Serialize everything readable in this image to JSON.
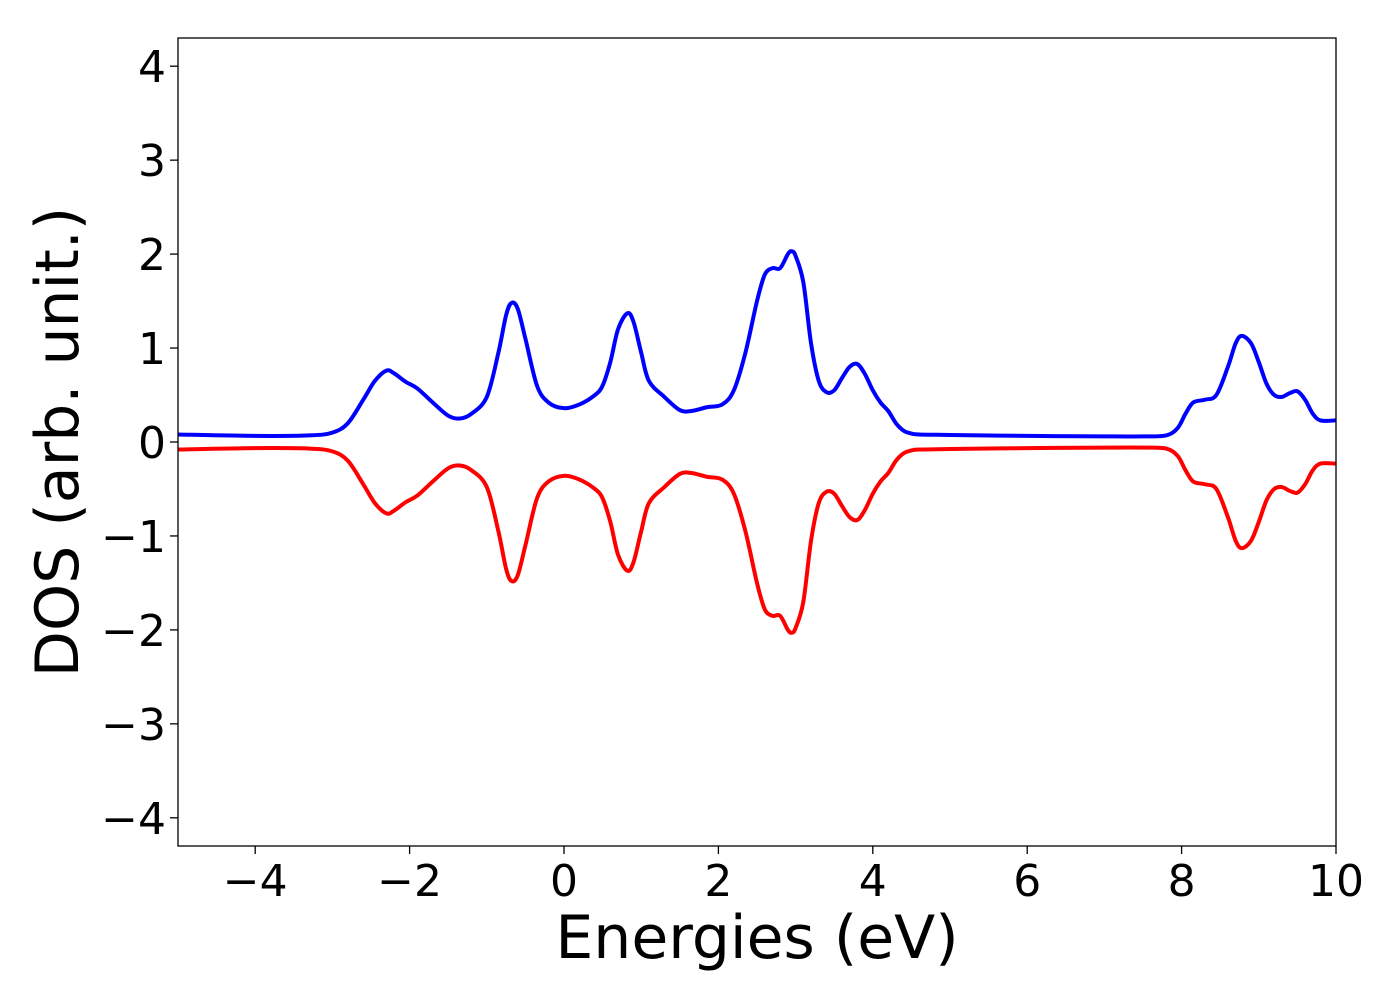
{
  "chart_data": {
    "type": "line",
    "title": "",
    "xlabel": "Energies (eV)",
    "ylabel": "DOS (arb. unit.)",
    "xlim": [
      -5,
      10
    ],
    "ylim": [
      -4.3,
      4.3
    ],
    "grid": false,
    "legend": "none",
    "x_ticks": [
      {
        "value": -4,
        "label": "−4"
      },
      {
        "value": -2,
        "label": "−2"
      },
      {
        "value": 0,
        "label": "0"
      },
      {
        "value": 2,
        "label": "2"
      },
      {
        "value": 4,
        "label": "4"
      },
      {
        "value": 6,
        "label": "6"
      },
      {
        "value": 8,
        "label": "8"
      },
      {
        "value": 10,
        "label": "10"
      }
    ],
    "y_ticks": [
      {
        "value": 4,
        "label": "4"
      },
      {
        "value": 3,
        "label": "3"
      },
      {
        "value": 2,
        "label": "2"
      },
      {
        "value": 1,
        "label": "1"
      },
      {
        "value": 0,
        "label": "0"
      },
      {
        "value": -1,
        "label": "−1"
      },
      {
        "value": -2,
        "label": "−2"
      },
      {
        "value": -3,
        "label": "−3"
      },
      {
        "value": -4,
        "label": "−4"
      }
    ],
    "series": [
      {
        "color": "#0000ff",
        "x": [
          -5.0,
          -4.0,
          -3.3,
          -3.0,
          -2.8,
          -2.6,
          -2.45,
          -2.3,
          -2.2,
          -2.05,
          -1.9,
          -1.7,
          -1.5,
          -1.35,
          -1.2,
          -1.0,
          -0.85,
          -0.75,
          -0.68,
          -0.6,
          -0.5,
          -0.35,
          -0.2,
          0.0,
          0.2,
          0.4,
          0.5,
          0.6,
          0.7,
          0.82,
          0.9,
          1.0,
          1.1,
          1.3,
          1.5,
          1.65,
          1.85,
          2.05,
          2.2,
          2.35,
          2.5,
          2.6,
          2.7,
          2.8,
          2.9,
          2.95,
          3.0,
          3.1,
          3.2,
          3.3,
          3.4,
          3.5,
          3.6,
          3.7,
          3.8,
          3.9,
          4.0,
          4.1,
          4.2,
          4.3,
          4.4,
          4.5,
          4.6,
          5.0,
          6.0,
          7.0,
          7.5,
          7.8,
          7.95,
          8.05,
          8.15,
          8.3,
          8.45,
          8.6,
          8.7,
          8.78,
          8.9,
          9.0,
          9.1,
          9.2,
          9.3,
          9.4,
          9.5,
          9.6,
          9.7,
          9.8,
          10.0
        ],
        "values": [
          0.08,
          0.065,
          0.07,
          0.1,
          0.2,
          0.45,
          0.65,
          0.76,
          0.73,
          0.64,
          0.57,
          0.42,
          0.28,
          0.25,
          0.3,
          0.48,
          0.95,
          1.35,
          1.48,
          1.42,
          1.1,
          0.6,
          0.42,
          0.36,
          0.4,
          0.5,
          0.6,
          0.85,
          1.2,
          1.37,
          1.28,
          0.95,
          0.65,
          0.48,
          0.34,
          0.33,
          0.37,
          0.4,
          0.55,
          0.95,
          1.5,
          1.78,
          1.85,
          1.85,
          2.0,
          2.03,
          1.98,
          1.7,
          1.05,
          0.65,
          0.53,
          0.55,
          0.68,
          0.8,
          0.83,
          0.72,
          0.55,
          0.42,
          0.33,
          0.2,
          0.12,
          0.09,
          0.08,
          0.075,
          0.065,
          0.06,
          0.06,
          0.07,
          0.15,
          0.3,
          0.42,
          0.45,
          0.5,
          0.8,
          1.05,
          1.13,
          1.05,
          0.85,
          0.62,
          0.5,
          0.48,
          0.52,
          0.54,
          0.45,
          0.3,
          0.23,
          0.23
        ]
      },
      {
        "color": "#ff0000",
        "x": [
          -5.0,
          -4.0,
          -3.3,
          -3.0,
          -2.8,
          -2.6,
          -2.45,
          -2.3,
          -2.2,
          -2.05,
          -1.9,
          -1.7,
          -1.5,
          -1.35,
          -1.2,
          -1.0,
          -0.85,
          -0.75,
          -0.68,
          -0.6,
          -0.5,
          -0.35,
          -0.2,
          0.0,
          0.2,
          0.4,
          0.5,
          0.6,
          0.7,
          0.82,
          0.9,
          1.0,
          1.1,
          1.3,
          1.5,
          1.65,
          1.85,
          2.05,
          2.2,
          2.35,
          2.5,
          2.6,
          2.7,
          2.8,
          2.9,
          2.95,
          3.0,
          3.1,
          3.2,
          3.3,
          3.4,
          3.5,
          3.6,
          3.7,
          3.8,
          3.9,
          4.0,
          4.1,
          4.2,
          4.3,
          4.4,
          4.5,
          4.6,
          5.0,
          6.0,
          7.0,
          7.5,
          7.8,
          7.95,
          8.05,
          8.15,
          8.3,
          8.45,
          8.6,
          8.7,
          8.78,
          8.9,
          9.0,
          9.1,
          9.2,
          9.3,
          9.4,
          9.5,
          9.6,
          9.7,
          9.8,
          10.0
        ],
        "values": [
          -0.08,
          -0.065,
          -0.07,
          -0.1,
          -0.2,
          -0.45,
          -0.65,
          -0.76,
          -0.73,
          -0.64,
          -0.57,
          -0.42,
          -0.28,
          -0.25,
          -0.3,
          -0.48,
          -0.95,
          -1.35,
          -1.48,
          -1.42,
          -1.1,
          -0.6,
          -0.42,
          -0.36,
          -0.4,
          -0.5,
          -0.6,
          -0.85,
          -1.2,
          -1.37,
          -1.28,
          -0.95,
          -0.65,
          -0.48,
          -0.34,
          -0.33,
          -0.37,
          -0.4,
          -0.55,
          -0.95,
          -1.5,
          -1.78,
          -1.85,
          -1.85,
          -2.0,
          -2.03,
          -1.98,
          -1.7,
          -1.05,
          -0.65,
          -0.53,
          -0.55,
          -0.68,
          -0.8,
          -0.83,
          -0.72,
          -0.55,
          -0.42,
          -0.33,
          -0.2,
          -0.12,
          -0.09,
          -0.08,
          -0.075,
          -0.065,
          -0.06,
          -0.06,
          -0.07,
          -0.15,
          -0.3,
          -0.42,
          -0.45,
          -0.5,
          -0.8,
          -1.05,
          -1.13,
          -1.05,
          -0.85,
          -0.62,
          -0.5,
          -0.48,
          -0.52,
          -0.54,
          -0.45,
          -0.3,
          -0.23,
          -0.23
        ]
      }
    ]
  }
}
